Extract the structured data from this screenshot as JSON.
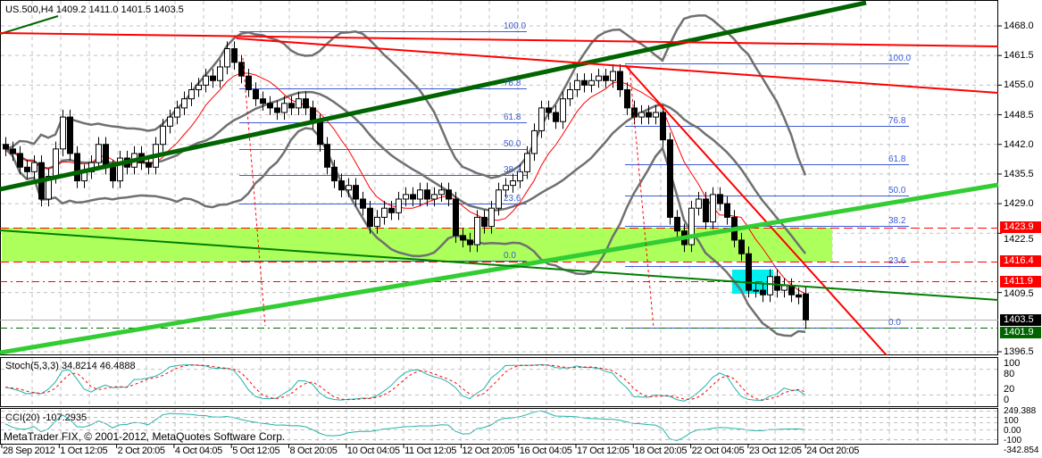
{
  "header": {
    "symbol_info": "US.500,H4  1409.2 1411.0 1401.5 1403.5"
  },
  "footer": {
    "copyright": "MetaTrader FIX, © 2001-2012, MetaQuotes Software Corp."
  },
  "colors": {
    "bull": "#ffffff",
    "bear": "#000000",
    "zone": "#adff5c",
    "box": "#00f0f0",
    "fib": "#3b5bd6",
    "ma": "#ff0000",
    "bands": "#707070"
  },
  "chart_data": {
    "type": "candlestick",
    "title": "US.500,H4",
    "ohlc_last": {
      "open": 1409.2,
      "high": 1411.0,
      "low": 1401.5,
      "close": 1403.5
    },
    "ylim": [
      1396.5,
      1471.0
    ],
    "y_ticks": [
      "1468.0",
      "1461.5",
      "1455.0",
      "1448.5",
      "1442.0",
      "1435.5",
      "1429.0",
      "1422.5",
      "1409.5",
      "1396.5"
    ],
    "closes": [
      1441,
      1440,
      1437,
      1436,
      1438,
      1430,
      1435,
      1441,
      1448,
      1440,
      1434,
      1436,
      1438,
      1442,
      1437,
      1434,
      1439,
      1437,
      1440,
      1438,
      1437,
      1442,
      1446,
      1448,
      1450,
      1452,
      1454,
      1455,
      1457,
      1456,
      1459,
      1463,
      1460,
      1457,
      1454,
      1452,
      1451,
      1450,
      1449,
      1451,
      1450,
      1452,
      1450,
      1447,
      1442,
      1437,
      1434,
      1432,
      1433,
      1430,
      1428,
      1424,
      1426,
      1428,
      1427,
      1430,
      1431,
      1430,
      1432,
      1430,
      1431,
      1432,
      1430,
      1422,
      1421,
      1420,
      1426,
      1424,
      1428,
      1432,
      1433,
      1434,
      1436,
      1440,
      1445,
      1450,
      1449,
      1447,
      1452,
      1454,
      1456,
      1455,
      1456,
      1457,
      1456,
      1458,
      1454,
      1450,
      1448,
      1449,
      1448,
      1449,
      1443,
      1426,
      1423,
      1420,
      1428,
      1430,
      1425,
      1431,
      1429,
      1426,
      1421,
      1418,
      1410,
      1410,
      1409,
      1413,
      1410,
      1411,
      1409,
      1408.5,
      1403.5
    ],
    "first_open": 1442,
    "price_tags": [
      {
        "value": 1423.9,
        "label": "1423.9",
        "color": "#ff0000"
      },
      {
        "value": 1416.4,
        "label": "1416.4",
        "color": "#ff0000"
      },
      {
        "value": 1411.9,
        "label": "1411.9",
        "color": "#ff0000"
      },
      {
        "value": 1403.5,
        "label": "1403.5",
        "color": "#000000"
      },
      {
        "value": 1401.9,
        "label": "1401.9",
        "color": "#006400"
      }
    ],
    "fib_left": [
      "100.0",
      "76.8",
      "61.8",
      "50.0",
      "38.2",
      "23.6",
      "0.0"
    ],
    "fib_right": [
      "100.0",
      "76.8",
      "61.8",
      "50.0",
      "38.2",
      "23.6",
      "0.0"
    ],
    "x_labels": [
      "28 Sep 2012",
      "1 Oct 12:05",
      "2 Oct 20:05",
      "4 Oct 04:05",
      "5 Oct 12:05",
      "8 Oct 20:05",
      "10 Oct 04:05",
      "11 Oct 12:05",
      "12 Oct 20:05",
      "16 Oct 04:05",
      "17 Oct 12:05",
      "18 Oct 20:05",
      "22 Oct 04:05",
      "23 Oct 12:05",
      "24 Oct 20:05"
    ],
    "stoch": {
      "label": "Stoch(5,3,3) 34.8214 46.4888",
      "ticks": [
        "100",
        "80",
        "20",
        "0"
      ]
    },
    "cci": {
      "label": "CCI(20) -107.2935",
      "ticks": [
        "249.388",
        "100",
        "0.00",
        "-100",
        "-342.854"
      ]
    }
  }
}
